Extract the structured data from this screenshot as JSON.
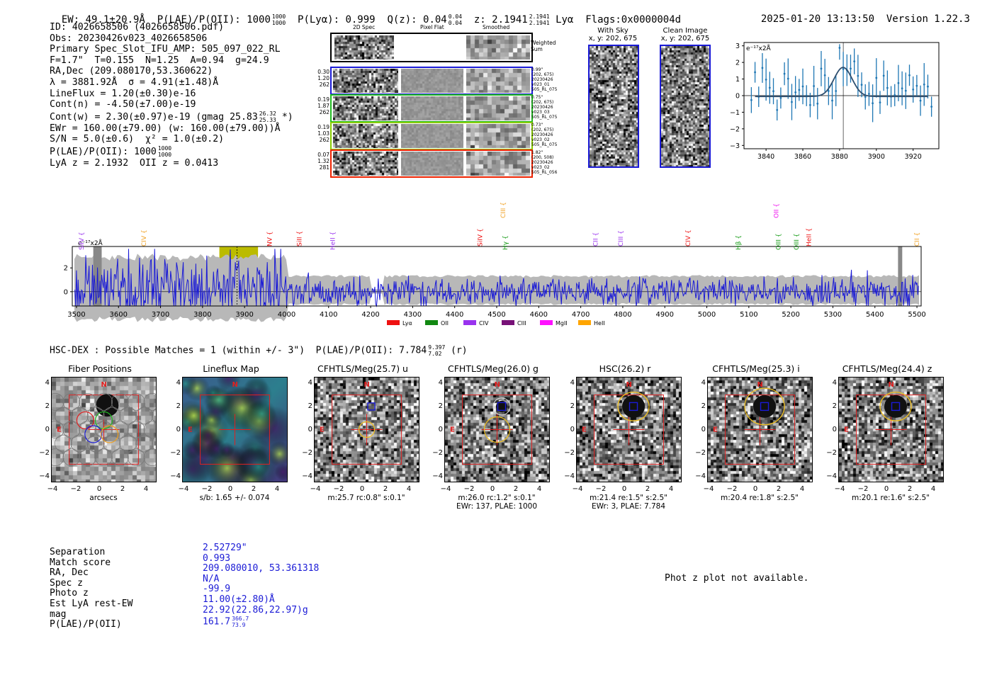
{
  "header": {
    "ew": "EW: 49.1±20.9Å",
    "plae_label": "P(LAE)/P(OII): 1000",
    "plae_hi": "1000",
    "plae_lo": "1000",
    "plya": "P(Lyα): 0.999",
    "qz_label": "Q(z): 0.04",
    "qz_hi": "0.04",
    "qz_lo": "0.04",
    "z_label": "z: 2.1941",
    "z_hi": "2.1941",
    "z_lo": "2.1941",
    "line": "Lyα",
    "flags": "Flags:0x0000004d",
    "datetime": "2025-01-20 13:13:50",
    "version": "Version 1.22.3"
  },
  "info": {
    "id": "ID: 4026658506 (4026658506.pdf)",
    "obs": "Obs: 20230426v023_4026658506",
    "primary": "Primary Spec_Slot_IFU_AMP: 505_097_022_RL",
    "fit": "F=1.7\"  T=0.155  N=1.25  A=0.94  g=24.9",
    "radec": "RA,Dec (209.080170,53.360622)",
    "lambda": "λ = 3881.92Å  σ = 4.91(±1.48)Å",
    "lineflux": "LineFlux = 1.20(±0.30)e-16",
    "contn": "Cont(n) = -4.50(±7.00)e-19",
    "contw": "Cont(w) = 2.30(±0.97)e-19 (gmag 25.83",
    "contw_hi": "26.32",
    "contw_lo": "25.33",
    "contw_end": "*)",
    "ewr": "EWr = 160.00(±79.00) (w: 160.00(±79.00))Å",
    "sn": "S/N = 5.0(±0.6)  χ² = 1.0(±0.2)",
    "plae": "P(LAE)/P(OII): 1000",
    "plae_hi": "1000",
    "plae_lo": "1000",
    "lyaz": "LyA z = 2.1932  OII z = 0.0413"
  },
  "cutouts": {
    "col_2d": "2D Spec",
    "col_flat": "Pixel Flat",
    "col_smooth": "Smoothed",
    "weighted_sum": "Weighted Sum",
    "rows": [
      {
        "vals": [
          "0.30",
          "1.20",
          "262"
        ],
        "right": [
          "0.99\"",
          "(202, 675)",
          "20230426",
          "v023_01",
          "505_RL_075"
        ],
        "color": "#1a1ad6"
      },
      {
        "vals": [
          "0.19",
          "1.87",
          "262"
        ],
        "right": [
          "0.75\"",
          "(202, 675)",
          "20230426",
          "v023_03",
          "505_RL_075"
        ],
        "color": "#22bb22"
      },
      {
        "vals": [
          "0.19",
          "1.03",
          "262"
        ],
        "right": [
          "0.73\"",
          "(202, 675)",
          "20230426",
          "v023_02",
          "505_RL_075"
        ],
        "color": "#88cc00"
      },
      {
        "vals": [
          "0.07",
          "1.32",
          "281"
        ],
        "right": [
          "1.82\"",
          "(200, 508)",
          "20230426",
          "v023_02",
          "505_RL_056"
        ],
        "color": "#ee2200"
      }
    ]
  },
  "sky": {
    "with_sky_title": "With Sky",
    "with_sky_coord": "x, y: 202, 675",
    "clean_title": "Clean Image",
    "clean_coord": "x, y: 202, 675"
  },
  "zoom_plot": {
    "unit": "e⁻¹⁷x2Å",
    "xticks": [
      "3840",
      "3860",
      "3880",
      "3900",
      "3920"
    ],
    "yticks": [
      "3",
      "2",
      "1",
      "0",
      "−1",
      "−2",
      "−3"
    ]
  },
  "spectrum": {
    "unit": "e⁻¹⁷x2Å",
    "xticks": [
      "3500",
      "3600",
      "3700",
      "3800",
      "3900",
      "4000",
      "4100",
      "4200",
      "4300",
      "4400",
      "4500",
      "4600",
      "4700",
      "4800",
      "4900",
      "5000",
      "5100",
      "5200",
      "5300",
      "5400",
      "5500"
    ],
    "yticks": [
      "2",
      "0"
    ],
    "line_marks": [
      {
        "label": "SiIV",
        "color": "#9933ee"
      },
      {
        "label": "CIV",
        "color": "#f0a020"
      },
      {
        "label": "NV",
        "color": "#ee1111"
      },
      {
        "label": "SiII",
        "color": "#ee1111"
      },
      {
        "label": "HeII",
        "color": "#9933ee"
      },
      {
        "label": "CIII",
        "color": "#f0a020"
      },
      {
        "label": "SiIV",
        "color": "#ee1111"
      },
      {
        "label": "Hγ",
        "color": "#119911"
      },
      {
        "label": "CII",
        "color": "#9933ee"
      },
      {
        "label": "CIII",
        "color": "#9933ee"
      },
      {
        "label": "CIV",
        "color": "#ee1111"
      },
      {
        "label": "Hβ",
        "color": "#119911"
      },
      {
        "label": "OII",
        "color": "#ee11ee"
      },
      {
        "label": "OIII",
        "color": "#119911"
      },
      {
        "label": "OIII",
        "color": "#119911"
      },
      {
        "label": "HeII",
        "color": "#ee1111"
      },
      {
        "label": "CII",
        "color": "#f0a020"
      }
    ],
    "legend": [
      {
        "label": "Lyα",
        "color": "#ee1111"
      },
      {
        "label": "OII",
        "color": "#118811"
      },
      {
        "label": "CIV",
        "color": "#9933ee"
      },
      {
        "label": "CIII",
        "color": "#771177"
      },
      {
        "label": "MgII",
        "color": "#ff11ff"
      },
      {
        "label": "HeII",
        "color": "#ffa500"
      }
    ]
  },
  "hsc": {
    "title": "HSC-DEX : Possible Matches = 1 (within +/- 3\")  P(LAE)/P(OII): 7.784",
    "p_hi": "9.397",
    "p_lo": "7.02",
    "band": "(r)"
  },
  "thumbs": [
    {
      "title": "Fiber Positions",
      "cap1": "arcsecs",
      "cap2": ""
    },
    {
      "title": "Lineflux Map",
      "cap1": "s/b: 1.65 +/- 0.074",
      "cap2": ""
    },
    {
      "title": "CFHTLS/Meg(25.7) u",
      "cap1": "m:25.7 rc:0.8\"  s:0.1\"",
      "cap2": ""
    },
    {
      "title": "CFHTLS/Meg(26.0) g",
      "cap1": "m:26.0 rc:1.2\"  s:0.1\"",
      "cap2": "EWr: 137, PLAE: 1000"
    },
    {
      "title": "HSC(26.2) r",
      "cap1": "m:21.4  re:1.5\"  s:2.5\"",
      "cap2": "EWr: 3, PLAE: 7.784"
    },
    {
      "title": "CFHTLS/Meg(25.3) i",
      "cap1": "m:20.4  re:1.8\"  s:2.5\"",
      "cap2": ""
    },
    {
      "title": "CFHTLS/Meg(24.4) z",
      "cap1": "m:20.1  re:1.6\"  s:2.5\"",
      "cap2": ""
    }
  ],
  "thumb_axis": {
    "ticks": [
      "4",
      "2",
      "0",
      "−2",
      "−4"
    ],
    "xticks": [
      "−4",
      "−2",
      "0",
      "2",
      "4"
    ],
    "north": "N",
    "east": "E"
  },
  "match": {
    "labels": [
      "Separation",
      "Match score",
      "RA, Dec",
      "Spec z",
      "Photo z",
      "Est LyA rest-EW",
      "mag",
      "P(LAE)/P(OII)"
    ],
    "values": [
      "2.52729\"",
      "0.993",
      "209.080010, 53.361318",
      "N/A",
      "-99.9",
      "11.00(±2.80)Å",
      "22.92(22.86,22.97)g",
      "161.7"
    ],
    "plae_hi": "366.7",
    "plae_lo": "73.9",
    "photz_note": "Phot z plot not available."
  },
  "colors": {
    "spectrum_line": "#1a1ad6",
    "error_band": "#b8b8b8",
    "highlight": "#bbbb00",
    "zoom_points": "#1f77b4",
    "fit_line": "#2f4f6f"
  }
}
